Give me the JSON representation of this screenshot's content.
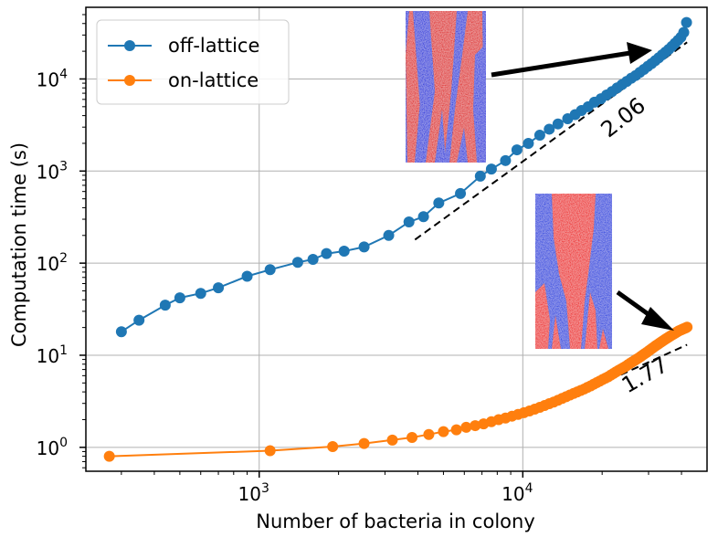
{
  "chart_data": {
    "type": "line",
    "title": "",
    "xlabel": "Number of bacteria in colony",
    "ylabel": "Computation time (s)",
    "xscale": "log",
    "yscale": "log",
    "xlim": [
      220,
      50000
    ],
    "ylim": [
      0.55,
      60000
    ],
    "grid": true,
    "legend_position": "top-left",
    "x_ticks": [
      {
        "value": 1000,
        "base": "10",
        "exp": "3"
      },
      {
        "value": 10000,
        "base": "10",
        "exp": "4"
      }
    ],
    "y_ticks": [
      {
        "value": 1,
        "base": "10",
        "exp": "0"
      },
      {
        "value": 10,
        "base": "10",
        "exp": "1"
      },
      {
        "value": 100,
        "base": "10",
        "exp": "2"
      },
      {
        "value": 1000,
        "base": "10",
        "exp": "3"
      },
      {
        "value": 10000,
        "base": "10",
        "exp": "4"
      }
    ],
    "series": [
      {
        "name": "off-lattice",
        "color": "#1f77b4",
        "x": [
          300,
          350,
          440,
          500,
          600,
          700,
          900,
          1100,
          1400,
          1600,
          1800,
          2100,
          2500,
          3100,
          3700,
          4200,
          4800,
          5800,
          6900,
          7600,
          8600,
          9500,
          10500,
          11600,
          12600,
          13600,
          14800,
          15800,
          16700,
          17700,
          18700,
          19800,
          20800,
          21800,
          22800,
          23800,
          24800,
          25800,
          26800,
          27800,
          28800,
          29800,
          30800,
          31800,
          32800,
          33800,
          34800,
          35800,
          36800,
          37800,
          38800,
          39800,
          40800,
          41800
        ],
        "y": [
          18,
          24,
          35,
          42,
          47,
          54,
          72,
          85,
          102,
          110,
          127,
          135,
          150,
          200,
          280,
          320,
          450,
          570,
          880,
          1050,
          1300,
          1700,
          2000,
          2450,
          2850,
          3250,
          3700,
          4100,
          4550,
          5000,
          5600,
          6100,
          6700,
          7300,
          8000,
          8700,
          9400,
          10200,
          10900,
          11800,
          12700,
          13700,
          14700,
          15800,
          17000,
          18300,
          19600,
          21000,
          22600,
          24400,
          26300,
          28400,
          32000,
          41000
        ]
      },
      {
        "name": "on-lattice",
        "color": "#ff7f0e",
        "x": [
          270,
          1100,
          1900,
          2500,
          3200,
          3800,
          4400,
          5000,
          5600,
          6100,
          6600,
          7100,
          7600,
          8100,
          8600,
          9100,
          9600,
          10100,
          10600,
          11100,
          11600,
          12100,
          12600,
          13100,
          13600,
          14100,
          14600,
          15100,
          15600,
          16100,
          16600,
          17100,
          17600,
          18100,
          18600,
          19100,
          19600,
          20100,
          20600,
          21100,
          21600,
          22100,
          22600,
          23100,
          23600,
          24100,
          24600,
          25100,
          25600,
          26100,
          26600,
          27100,
          27600,
          28100,
          28600,
          29100,
          29600,
          30100,
          30600,
          31100,
          31600,
          32100,
          32600,
          33100,
          33600,
          34100,
          34600,
          35100,
          35600,
          36100,
          36600,
          37100,
          37600,
          38100,
          38600,
          39100,
          39600,
          40100,
          40600,
          41100,
          41600,
          42000
        ],
        "y": [
          0.8,
          0.92,
          1.02,
          1.1,
          1.2,
          1.28,
          1.38,
          1.48,
          1.55,
          1.65,
          1.72,
          1.8,
          1.9,
          2.0,
          2.08,
          2.18,
          2.28,
          2.38,
          2.48,
          2.6,
          2.72,
          2.85,
          2.98,
          3.1,
          3.25,
          3.4,
          3.55,
          3.7,
          3.85,
          4.0,
          4.15,
          4.3,
          4.48,
          4.65,
          4.85,
          5.05,
          5.25,
          5.45,
          5.65,
          5.85,
          6.1,
          6.35,
          6.6,
          6.85,
          7.1,
          7.35,
          7.6,
          7.9,
          8.2,
          8.5,
          8.8,
          9.1,
          9.4,
          9.75,
          10.1,
          10.45,
          10.8,
          11.2,
          11.6,
          12.0,
          12.4,
          12.8,
          13.2,
          13.6,
          14.0,
          14.4,
          14.8,
          15.2,
          15.6,
          16.0,
          16.4,
          16.8,
          17.2,
          17.6,
          18.0,
          18.4,
          18.7,
          19.0,
          19.3,
          19.6,
          19.9,
          20.2
        ]
      }
    ],
    "annotations": [
      {
        "text": "2.06",
        "series": "off-lattice",
        "line": {
          "x": [
            3900,
            42000
          ],
          "y": [
            180,
            25000
          ]
        },
        "text_pos": {
          "x": 25000,
          "y": 3300
        },
        "rotation": -38
      },
      {
        "text": "1.77",
        "series": "on-lattice",
        "line": {
          "x": [
            19500,
            42000
          ],
          "y": [
            4.8,
            13
          ]
        },
        "text_pos": {
          "x": 30000,
          "y": 5.2
        },
        "rotation": -30
      }
    ]
  }
}
